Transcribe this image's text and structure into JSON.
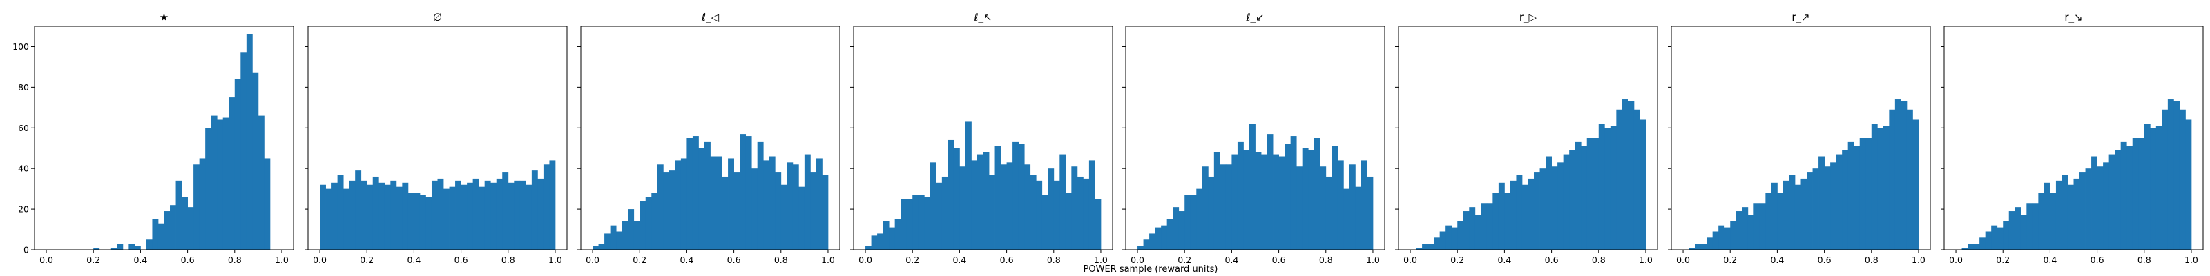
{
  "chart_data": {
    "type": "bar",
    "subtype": "histogram-grid",
    "xlabel": "POWER sample (reward units)",
    "bin_count": 40,
    "x_range": [
      0,
      1
    ],
    "xlim": [
      -0.05,
      1.05
    ],
    "ylim": [
      0,
      110
    ],
    "x_ticks": [
      "0.0",
      "0.2",
      "0.4",
      "0.6",
      "0.8",
      "1.0"
    ],
    "y_ticks": [
      "0",
      "20",
      "40",
      "60",
      "80",
      "100"
    ],
    "bar_color": "#1f77b4",
    "grid": false,
    "shared_y": true,
    "panels": [
      {
        "title": "★",
        "values": [
          0,
          0,
          0,
          0,
          0,
          0,
          0,
          0,
          1,
          0,
          0,
          1,
          3,
          0,
          3,
          2,
          0,
          5,
          15,
          13,
          19,
          22,
          34,
          26,
          21,
          42,
          45,
          60,
          66,
          64,
          65,
          75,
          84,
          97,
          106,
          87,
          66,
          45,
          0,
          0
        ]
      },
      {
        "title": "∅",
        "values": [
          32,
          30,
          33,
          37,
          30,
          34,
          39,
          34,
          32,
          36,
          33,
          32,
          34,
          31,
          33,
          28,
          28,
          27,
          26,
          34,
          35,
          30,
          31,
          34,
          32,
          33,
          35,
          31,
          34,
          33,
          35,
          38,
          33,
          34,
          34,
          32,
          39,
          35,
          42,
          44
        ]
      },
      {
        "title": "ℓ_◁",
        "values": [
          2,
          3,
          8,
          12,
          9,
          14,
          20,
          14,
          24,
          26,
          28,
          42,
          38,
          39,
          44,
          45,
          55,
          56,
          50,
          53,
          46,
          46,
          36,
          45,
          38,
          57,
          56,
          40,
          53,
          44,
          46,
          38,
          32,
          43,
          42,
          31,
          47,
          38,
          45,
          37
        ]
      },
      {
        "title": "ℓ_↖",
        "values": [
          2,
          7,
          8,
          14,
          11,
          15,
          25,
          25,
          27,
          27,
          26,
          43,
          33,
          36,
          54,
          50,
          41,
          63,
          44,
          47,
          48,
          37,
          51,
          42,
          43,
          53,
          52,
          42,
          37,
          34,
          27,
          40,
          34,
          47,
          28,
          41,
          36,
          35,
          44,
          25
        ]
      },
      {
        "title": "ℓ_↙",
        "values": [
          2,
          5,
          8,
          11,
          12,
          15,
          21,
          19,
          27,
          27,
          30,
          41,
          36,
          48,
          42,
          42,
          47,
          53,
          49,
          62,
          48,
          47,
          57,
          47,
          46,
          52,
          56,
          41,
          50,
          49,
          55,
          41,
          36,
          51,
          44,
          30,
          42,
          31,
          44,
          36
        ]
      },
      {
        "title": "r_▷",
        "values": [
          0,
          1,
          3,
          3,
          6,
          9,
          12,
          11,
          14,
          19,
          21,
          17,
          23,
          23,
          28,
          33,
          28,
          34,
          37,
          32,
          35,
          38,
          40,
          46,
          41,
          43,
          47,
          49,
          53,
          51,
          55,
          55,
          62,
          60,
          61,
          69,
          74,
          73,
          69,
          64
        ]
      },
      {
        "title": "r_↗",
        "values": [
          0,
          1,
          3,
          3,
          6,
          9,
          12,
          11,
          14,
          19,
          21,
          17,
          23,
          23,
          28,
          33,
          28,
          34,
          37,
          32,
          35,
          38,
          40,
          46,
          41,
          43,
          47,
          49,
          53,
          51,
          55,
          55,
          62,
          60,
          61,
          69,
          74,
          73,
          69,
          64
        ]
      },
      {
        "title": "r_↘",
        "values": [
          0,
          1,
          3,
          3,
          6,
          9,
          12,
          11,
          14,
          19,
          21,
          17,
          23,
          23,
          28,
          33,
          28,
          34,
          37,
          32,
          35,
          38,
          40,
          46,
          41,
          43,
          47,
          49,
          53,
          51,
          55,
          55,
          62,
          60,
          61,
          69,
          74,
          73,
          69,
          64
        ]
      }
    ]
  }
}
